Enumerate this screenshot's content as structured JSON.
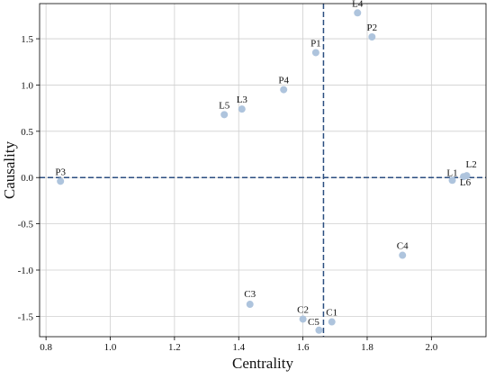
{
  "chart_data": {
    "type": "scatter",
    "xlabel": "Centrality",
    "ylabel": "Causality",
    "xlim": [
      0.78,
      2.17
    ],
    "ylim": [
      -1.72,
      1.88
    ],
    "xticks": [
      0.8,
      1.0,
      1.2,
      1.4,
      1.6,
      1.8,
      2.0
    ],
    "xtick_labels": [
      "0.8",
      "1.0",
      "1.2",
      "1.4",
      "1.6",
      "1.8",
      "2.0"
    ],
    "yticks": [
      -1.5,
      -1.0,
      -0.5,
      0.0,
      0.5,
      1.0,
      1.5
    ],
    "ytick_labels": [
      "-1.5",
      "-1.0",
      "-0.5",
      "0.0",
      "0.5",
      "1.0",
      "1.5"
    ],
    "grid": true,
    "reference_lines": {
      "x": 1.664,
      "y": 0.0,
      "style": "dashed",
      "color": "#2b4e80"
    },
    "marker_color": "#aec4dd",
    "points": [
      {
        "label": "L4",
        "x": 1.77,
        "y": 1.78
      },
      {
        "label": "P2",
        "x": 1.815,
        "y": 1.52
      },
      {
        "label": "P1",
        "x": 1.64,
        "y": 1.35
      },
      {
        "label": "P4",
        "x": 1.54,
        "y": 0.95
      },
      {
        "label": "L3",
        "x": 1.41,
        "y": 0.74
      },
      {
        "label": "L5",
        "x": 1.355,
        "y": 0.68
      },
      {
        "label": "P3",
        "x": 0.845,
        "y": -0.04
      },
      {
        "label": "L1",
        "x": 2.065,
        "y": -0.03
      },
      {
        "label": "L2",
        "x": 2.11,
        "y": 0.02
      },
      {
        "label": "L6",
        "x": 2.1,
        "y": 0.01
      },
      {
        "label": "C4",
        "x": 1.91,
        "y": -0.84
      },
      {
        "label": "C3",
        "x": 1.435,
        "y": -1.37
      },
      {
        "label": "C2",
        "x": 1.6,
        "y": -1.53
      },
      {
        "label": "C1",
        "x": 1.69,
        "y": -1.56
      },
      {
        "label": "C5",
        "x": 1.65,
        "y": -1.65
      }
    ]
  }
}
